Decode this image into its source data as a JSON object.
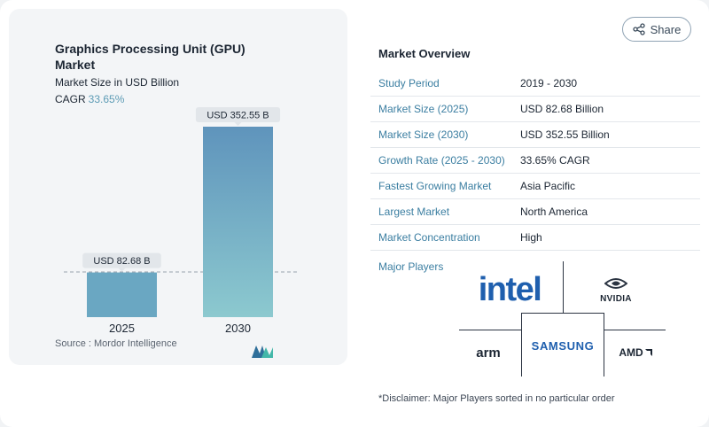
{
  "chart_data": {
    "type": "bar",
    "title": "Graphics Processing Unit (GPU) Market",
    "subtitle": "Market Size in USD Billion",
    "cagr_label": "CAGR",
    "cagr_value": "33.65%",
    "categories": [
      "2025",
      "2030"
    ],
    "values": [
      82.68,
      352.55
    ],
    "value_labels": [
      "USD 82.68 B",
      "USD 352.55 B"
    ],
    "colors": [
      "#6aa7c2",
      "#8cc9cf",
      "#5f94bc"
    ],
    "source": "Source :  Mordor Intelligence"
  },
  "share": {
    "label": "Share",
    "icon": "share-icon"
  },
  "overview": {
    "title": "Market Overview",
    "rows": [
      {
        "label": "Study Period",
        "value": "2019 - 2030"
      },
      {
        "label": "Market Size (2025)",
        "value": "USD 82.68 Billion"
      },
      {
        "label": "Market Size (2030)",
        "value": "USD 352.55 Billion"
      },
      {
        "label": "Growth Rate (2025 - 2030)",
        "value": "33.65% CAGR"
      },
      {
        "label": "Fastest Growing Market",
        "value": "Asia Pacific"
      },
      {
        "label": "Largest Market",
        "value": "North America"
      },
      {
        "label": "Market Concentration",
        "value": "High"
      }
    ],
    "players_label": "Major Players",
    "players": [
      "intel",
      "NVIDIA",
      "arm",
      "SAMSUNG",
      "AMD"
    ],
    "disclaimer": "*Disclaimer: Major Players sorted in no particular order"
  }
}
